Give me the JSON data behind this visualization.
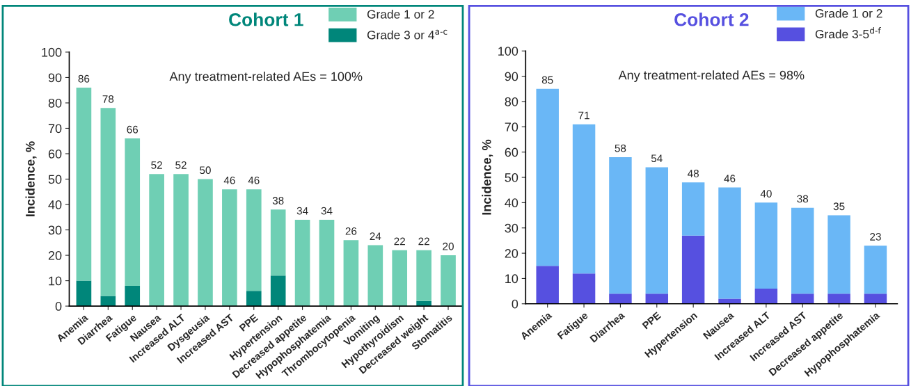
{
  "chart_data": [
    {
      "type": "bar",
      "title": "Cohort 1",
      "ylabel": "Incidence, %",
      "stacked": true,
      "legend": "top right",
      "grid": false,
      "categories": [
        "Anemia",
        "Diarrhea",
        "Fatigue",
        "Nausea",
        "Increased ALT",
        "Dysgeusia",
        "Increased AST",
        "PPE",
        "Hypertension",
        "Decreased appetite",
        "Hypophosphatemia",
        "Thrombocytopenia",
        "Vomiting",
        "Hypothyroidism",
        "Decreased weight",
        "Stomatitis"
      ],
      "series": [
        {
          "name": "Grade 3 or 4$^{a‐c}$",
          "color": "#00867a",
          "values": [
            10,
            4,
            8,
            0,
            0,
            0,
            0,
            6,
            12,
            0,
            0,
            0,
            0,
            0,
            2,
            0
          ]
        },
        {
          "name": "Grade 1 or 2",
          "color": "#6fcfb4",
          "values": [
            76,
            74,
            58,
            52,
            52,
            50,
            46,
            40,
            26,
            34,
            34,
            26,
            24,
            22,
            20,
            20
          ]
        }
      ],
      "totals": [
        "86",
        "78",
        "66",
        "52",
        "52",
        "50",
        "46",
        "46",
        "38",
        "34",
        "34",
        "26",
        "24",
        "22",
        "22",
        "20"
      ],
      "ylim": [
        0,
        100
      ],
      "yticks": [
        0,
        10,
        20,
        30,
        40,
        50,
        60,
        70,
        80,
        90,
        100
      ],
      "annotations": [
        "Any treatment-related AEs = 100%"
      ]
    },
    {
      "type": "bar",
      "title": "Cohort 2",
      "ylabel": "Incidence, %",
      "stacked": true,
      "legend": "top right",
      "grid": false,
      "categories": [
        "Anemia",
        "Fatigue",
        "Diarrhea",
        "PPE",
        "Hypertension",
        "Nausea",
        "Increased ALT",
        "Increased AST",
        "Decreased appetite",
        "Hypophosphatemia"
      ],
      "series": [
        {
          "name": "Grade 3-5$^{d‐f}$",
          "color": "#5650e0",
          "values": [
            15,
            12,
            4,
            4,
            27,
            2,
            6,
            4,
            4,
            4
          ]
        },
        {
          "name": "Grade 1 or 2",
          "color": "#6ab7f6",
          "values": [
            70,
            59,
            54,
            50,
            21,
            44,
            34,
            34,
            31,
            19
          ]
        }
      ],
      "totals": [
        "85",
        "71",
        "58",
        "54",
        "48",
        "46",
        "40",
        "38",
        "35",
        "23"
      ],
      "ylim": [
        0,
        100
      ],
      "yticks": [
        0,
        10,
        20,
        30,
        40,
        50,
        60,
        70,
        80,
        90,
        100
      ],
      "annotations": [
        "Any treatment-related AEs = 98%"
      ]
    }
  ]
}
